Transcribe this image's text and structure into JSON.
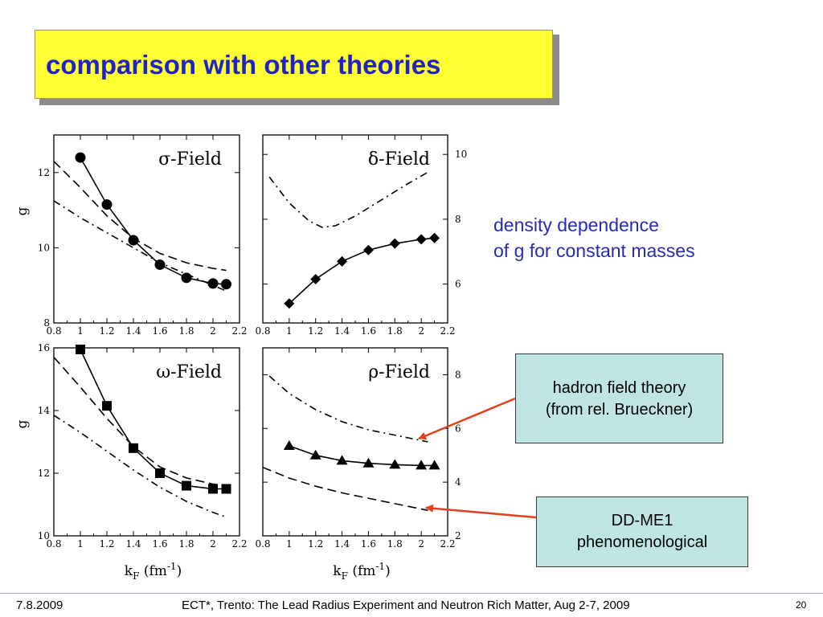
{
  "slide": {
    "title": "comparison with other theories",
    "note_line1": "density dependence",
    "note_line2": "of g for constant masses",
    "callout_hft_line1": "hadron field theory",
    "callout_hft_line2": "(from rel. Brueckner)",
    "callout_dd_line1": "DD-ME1",
    "callout_dd_line2": "phenomenological",
    "arrow_color": "#e0401a",
    "title_bg": "#ffff33",
    "title_color": "#2121c9",
    "footer": {
      "date": "7.8.2009",
      "event": "ECT*, Trento: The Lead Radius Experiment and Neutron Rich Matter, Aug 2-7, 2009",
      "page": "20"
    }
  },
  "chart_data": [
    {
      "type": "line",
      "title": "σ-Field",
      "ylabel": "g",
      "xlabel": "",
      "xlim": [
        0.8,
        2.2
      ],
      "ylim": [
        8,
        13
      ],
      "xticks": [
        0.8,
        1,
        1.2,
        1.4,
        1.6,
        1.8,
        2,
        2.2
      ],
      "yticks": [
        8,
        10,
        12
      ],
      "y_axis_side": "left",
      "series": [
        {
          "style": "solid",
          "marker": "circle",
          "x": [
            1,
            1.2,
            1.4,
            1.6,
            1.8,
            2,
            2.1
          ],
          "y": [
            12.4,
            11.15,
            10.2,
            9.55,
            9.2,
            9.05,
            9.03
          ]
        },
        {
          "style": "dashed",
          "x": [
            0.8,
            1,
            1.2,
            1.4,
            1.6,
            1.8,
            2,
            2.1
          ],
          "y": [
            12.3,
            11.6,
            10.85,
            10.25,
            9.85,
            9.6,
            9.45,
            9.4
          ]
        },
        {
          "style": "dashdot",
          "x": [
            0.8,
            1,
            1.2,
            1.4,
            1.6,
            1.8,
            2,
            2.1
          ],
          "y": [
            11.25,
            10.8,
            10.4,
            10.0,
            9.6,
            9.3,
            9.0,
            8.85
          ]
        }
      ]
    },
    {
      "type": "line",
      "title": "δ-Field",
      "ylabel": "",
      "xlabel": "",
      "xlim": [
        0.8,
        2.2
      ],
      "ylim": [
        4.8,
        10.6
      ],
      "xticks": [
        0.8,
        1,
        1.2,
        1.4,
        1.6,
        1.8,
        2,
        2.2
      ],
      "yticks": [
        6,
        8,
        10
      ],
      "y_axis_side": "right",
      "series": [
        {
          "style": "solid",
          "marker": "diamond",
          "x": [
            1,
            1.2,
            1.4,
            1.6,
            1.8,
            2,
            2.1
          ],
          "y": [
            5.4,
            6.15,
            6.7,
            7.05,
            7.25,
            7.38,
            7.42
          ]
        },
        {
          "style": "dashdot",
          "x": [
            0.85,
            1,
            1.15,
            1.25,
            1.35,
            1.5,
            1.7,
            1.9,
            2.05
          ],
          "y": [
            9.3,
            8.5,
            7.95,
            7.75,
            7.8,
            8.1,
            8.6,
            9.1,
            9.45
          ]
        }
      ]
    },
    {
      "type": "line",
      "title": "ω-Field",
      "ylabel": "g",
      "xlabel": "kF (fm-1)",
      "xlim": [
        0.8,
        2.2
      ],
      "ylim": [
        10,
        16
      ],
      "xticks": [
        0.8,
        1,
        1.2,
        1.4,
        1.6,
        1.8,
        2,
        2.2
      ],
      "yticks": [
        10,
        12,
        14,
        16
      ],
      "y_axis_side": "left",
      "series": [
        {
          "style": "solid",
          "marker": "square",
          "x": [
            1,
            1.2,
            1.4,
            1.6,
            1.8,
            2,
            2.1
          ],
          "y": [
            15.95,
            14.15,
            12.8,
            12.0,
            11.6,
            11.5,
            11.5
          ]
        },
        {
          "style": "dashed",
          "x": [
            0.8,
            1,
            1.2,
            1.4,
            1.6,
            1.8,
            2,
            2.1
          ],
          "y": [
            15.7,
            14.75,
            13.75,
            12.85,
            12.2,
            11.85,
            11.65,
            11.6
          ]
        },
        {
          "style": "dashdot",
          "x": [
            0.8,
            1,
            1.2,
            1.4,
            1.6,
            1.8,
            2,
            2.1
          ],
          "y": [
            13.85,
            13.3,
            12.7,
            12.1,
            11.55,
            11.1,
            10.75,
            10.6
          ]
        }
      ]
    },
    {
      "type": "line",
      "title": "ρ-Field",
      "ylabel": "",
      "xlabel": "kF (fm-1)",
      "xlim": [
        0.8,
        2.2
      ],
      "ylim": [
        2,
        9
      ],
      "xticks": [
        0.8,
        1,
        1.2,
        1.4,
        1.6,
        1.8,
        2,
        2.2
      ],
      "yticks": [
        2,
        4,
        6,
        8
      ],
      "y_axis_side": "right",
      "series": [
        {
          "style": "solid",
          "marker": "triangle",
          "x": [
            1,
            1.2,
            1.4,
            1.6,
            1.8,
            2,
            2.1
          ],
          "y": [
            5.35,
            5.0,
            4.8,
            4.7,
            4.65,
            4.62,
            4.62
          ]
        },
        {
          "style": "dashdot",
          "x": [
            0.85,
            1,
            1.2,
            1.4,
            1.6,
            1.8,
            2,
            2.05
          ],
          "y": [
            7.95,
            7.3,
            6.7,
            6.25,
            5.95,
            5.75,
            5.55,
            5.5
          ]
        },
        {
          "style": "dashed",
          "x": [
            0.8,
            1,
            1.2,
            1.4,
            1.6,
            1.8,
            2,
            2.05
          ],
          "y": [
            4.55,
            4.15,
            3.85,
            3.6,
            3.4,
            3.2,
            3.0,
            2.95
          ]
        }
      ]
    }
  ]
}
